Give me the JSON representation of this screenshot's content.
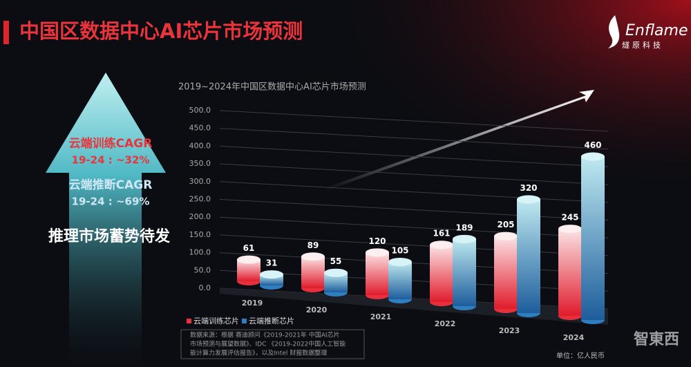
{
  "header": {
    "title": "中国区数据中心AI芯片市场预测",
    "logo": "Enflame",
    "logo_sub": "燧原科技"
  },
  "side": {
    "train_label": "云端训练CAGR",
    "train_cagr": "19-24 : ~32%",
    "infer_label": "云端推断CAGR",
    "infer_cagr": "19-24 : ~69%",
    "slogan": "推理市场蓄势待发"
  },
  "chart_data": {
    "type": "bar",
    "title": "2019~2024年中国区数据中心AI芯片市场预测",
    "categories": [
      "2019",
      "2020",
      "2021",
      "2022",
      "2023",
      "2024"
    ],
    "series": [
      {
        "name": "云端训练芯片",
        "color": "#e8303c",
        "values": [
          61,
          89,
          120,
          161,
          205,
          245
        ]
      },
      {
        "name": "云端推断芯片",
        "color": "#2e7fc0",
        "values": [
          31,
          55,
          105,
          189,
          320,
          460
        ]
      }
    ],
    "ylim": [
      0,
      500
    ],
    "yticks": [
      {
        "value": 0,
        "label": "0.0"
      },
      {
        "value": 50,
        "label": "50.0"
      },
      {
        "value": 100,
        "label": "100.0"
      },
      {
        "value": 150,
        "label": "150.0"
      },
      {
        "value": 200,
        "label": "200.0"
      },
      {
        "value": 250,
        "label": "250.0"
      },
      {
        "value": 300,
        "label": "300.0"
      },
      {
        "value": 350,
        "label": "350.0"
      },
      {
        "value": 400,
        "label": "400.0"
      },
      {
        "value": 450,
        "label": "450.0"
      },
      {
        "value": 500,
        "label": "500.0"
      }
    ],
    "grid": true,
    "unit": "单位：亿人民币"
  },
  "footer": {
    "source": [
      "数据来源：根据 赛迪顾问《2019-2021年 中国AI芯片",
      "市场预测与展望数据》、IDC 《2019-2022中国人工智能",
      "能计算力发展评估报告》，以及Intel 财报数据整理"
    ],
    "watermark": "智東西"
  }
}
